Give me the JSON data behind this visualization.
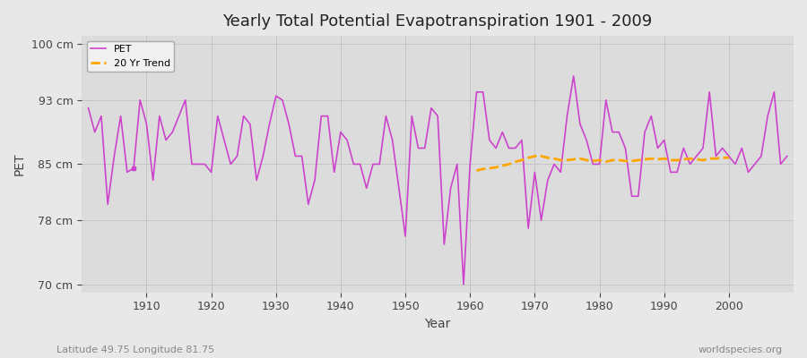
{
  "title": "Yearly Total Potential Evapotranspiration 1901 - 2009",
  "xlabel": "Year",
  "ylabel": "PET",
  "subtitle_left": "Latitude 49.75 Longitude 81.75",
  "subtitle_right": "worldspecies.org",
  "ylim": [
    69,
    101
  ],
  "yticks": [
    70,
    78,
    85,
    93,
    100
  ],
  "ytick_labels": [
    "70 cm",
    "78 cm",
    "85 cm",
    "93 cm",
    "100 cm"
  ],
  "bg_color": "#e8e8e8",
  "plot_bg_color": "#dcdcdc",
  "pet_color": "#cc44cc",
  "trend_color": "#ffa500",
  "years": [
    1901,
    1902,
    1903,
    1904,
    1905,
    1906,
    1907,
    1908,
    1909,
    1910,
    1911,
    1912,
    1913,
    1914,
    1915,
    1916,
    1917,
    1918,
    1919,
    1920,
    1921,
    1922,
    1923,
    1924,
    1925,
    1926,
    1927,
    1928,
    1929,
    1930,
    1931,
    1932,
    1933,
    1934,
    1935,
    1936,
    1937,
    1938,
    1939,
    1940,
    1941,
    1942,
    1943,
    1944,
    1945,
    1946,
    1947,
    1948,
    1949,
    1950,
    1951,
    1952,
    1953,
    1954,
    1955,
    1956,
    1957,
    1958,
    1959,
    1960,
    1961,
    1962,
    1963,
    1964,
    1965,
    1966,
    1967,
    1968,
    1969,
    1970,
    1971,
    1972,
    1973,
    1974,
    1975,
    1976,
    1977,
    1978,
    1979,
    1980,
    1981,
    1982,
    1983,
    1984,
    1985,
    1986,
    1987,
    1988,
    1989,
    1990,
    1991,
    1992,
    1993,
    1994,
    1995,
    1996,
    1997,
    1998,
    1999,
    2000,
    2001,
    2002,
    2003,
    2004,
    2005,
    2006,
    2007,
    2008,
    2009
  ],
  "pet_values": [
    92.0,
    89.0,
    91.0,
    80.0,
    86.0,
    91.0,
    84.0,
    84.5,
    93.0,
    90.0,
    83.0,
    91.0,
    88.0,
    89.0,
    91.0,
    93.0,
    85.0,
    85.0,
    85.0,
    84.0,
    91.0,
    88.0,
    85.0,
    86.0,
    91.0,
    90.0,
    83.0,
    86.0,
    90.0,
    93.5,
    93.0,
    90.0,
    86.0,
    86.0,
    80.0,
    83.0,
    91.0,
    91.0,
    84.0,
    89.0,
    88.0,
    85.0,
    85.0,
    82.0,
    85.0,
    85.0,
    91.0,
    88.0,
    82.0,
    76.0,
    91.0,
    87.0,
    87.0,
    92.0,
    91.0,
    75.0,
    82.0,
    85.0,
    70.0,
    85.0,
    94.0,
    94.0,
    88.0,
    87.0,
    89.0,
    87.0,
    87.0,
    88.0,
    77.0,
    84.0,
    78.0,
    83.0,
    85.0,
    84.0,
    91.0,
    96.0,
    90.0,
    88.0,
    85.0,
    85.0,
    93.0,
    89.0,
    89.0,
    87.0,
    81.0,
    81.0,
    89.0,
    91.0,
    87.0,
    88.0,
    84.0,
    84.0,
    87.0,
    85.0,
    86.0,
    87.0,
    94.0,
    86.0,
    87.0,
    86.0,
    85.0,
    87.0,
    84.0,
    85.0,
    86.0,
    91.0,
    94.0,
    85.0,
    86.0
  ],
  "dot_year": 1908,
  "dot_value": 84.5,
  "trend_years": [
    1961,
    1962,
    1963,
    1964,
    1965,
    1966,
    1967,
    1968,
    1969,
    1970,
    1971,
    1972,
    1973,
    1974,
    1975,
    1976,
    1977,
    1978,
    1979,
    1980,
    1981,
    1982,
    1983,
    1984,
    1985,
    1986,
    1987,
    1988,
    1989,
    1990,
    1991,
    1992,
    1993,
    1994,
    1995,
    1996,
    1997,
    1998,
    1999,
    2000
  ],
  "trend_values": [
    84.2,
    84.4,
    84.5,
    84.6,
    84.8,
    85.0,
    85.3,
    85.5,
    85.8,
    86.0,
    86.0,
    85.8,
    85.7,
    85.5,
    85.5,
    85.6,
    85.7,
    85.5,
    85.4,
    85.5,
    85.3,
    85.5,
    85.5,
    85.4,
    85.4,
    85.5,
    85.6,
    85.7,
    85.6,
    85.7,
    85.5,
    85.5,
    85.6,
    85.7,
    85.6,
    85.5,
    85.7,
    85.7,
    85.8,
    85.8
  ],
  "grid_color": "#bbbbbb"
}
